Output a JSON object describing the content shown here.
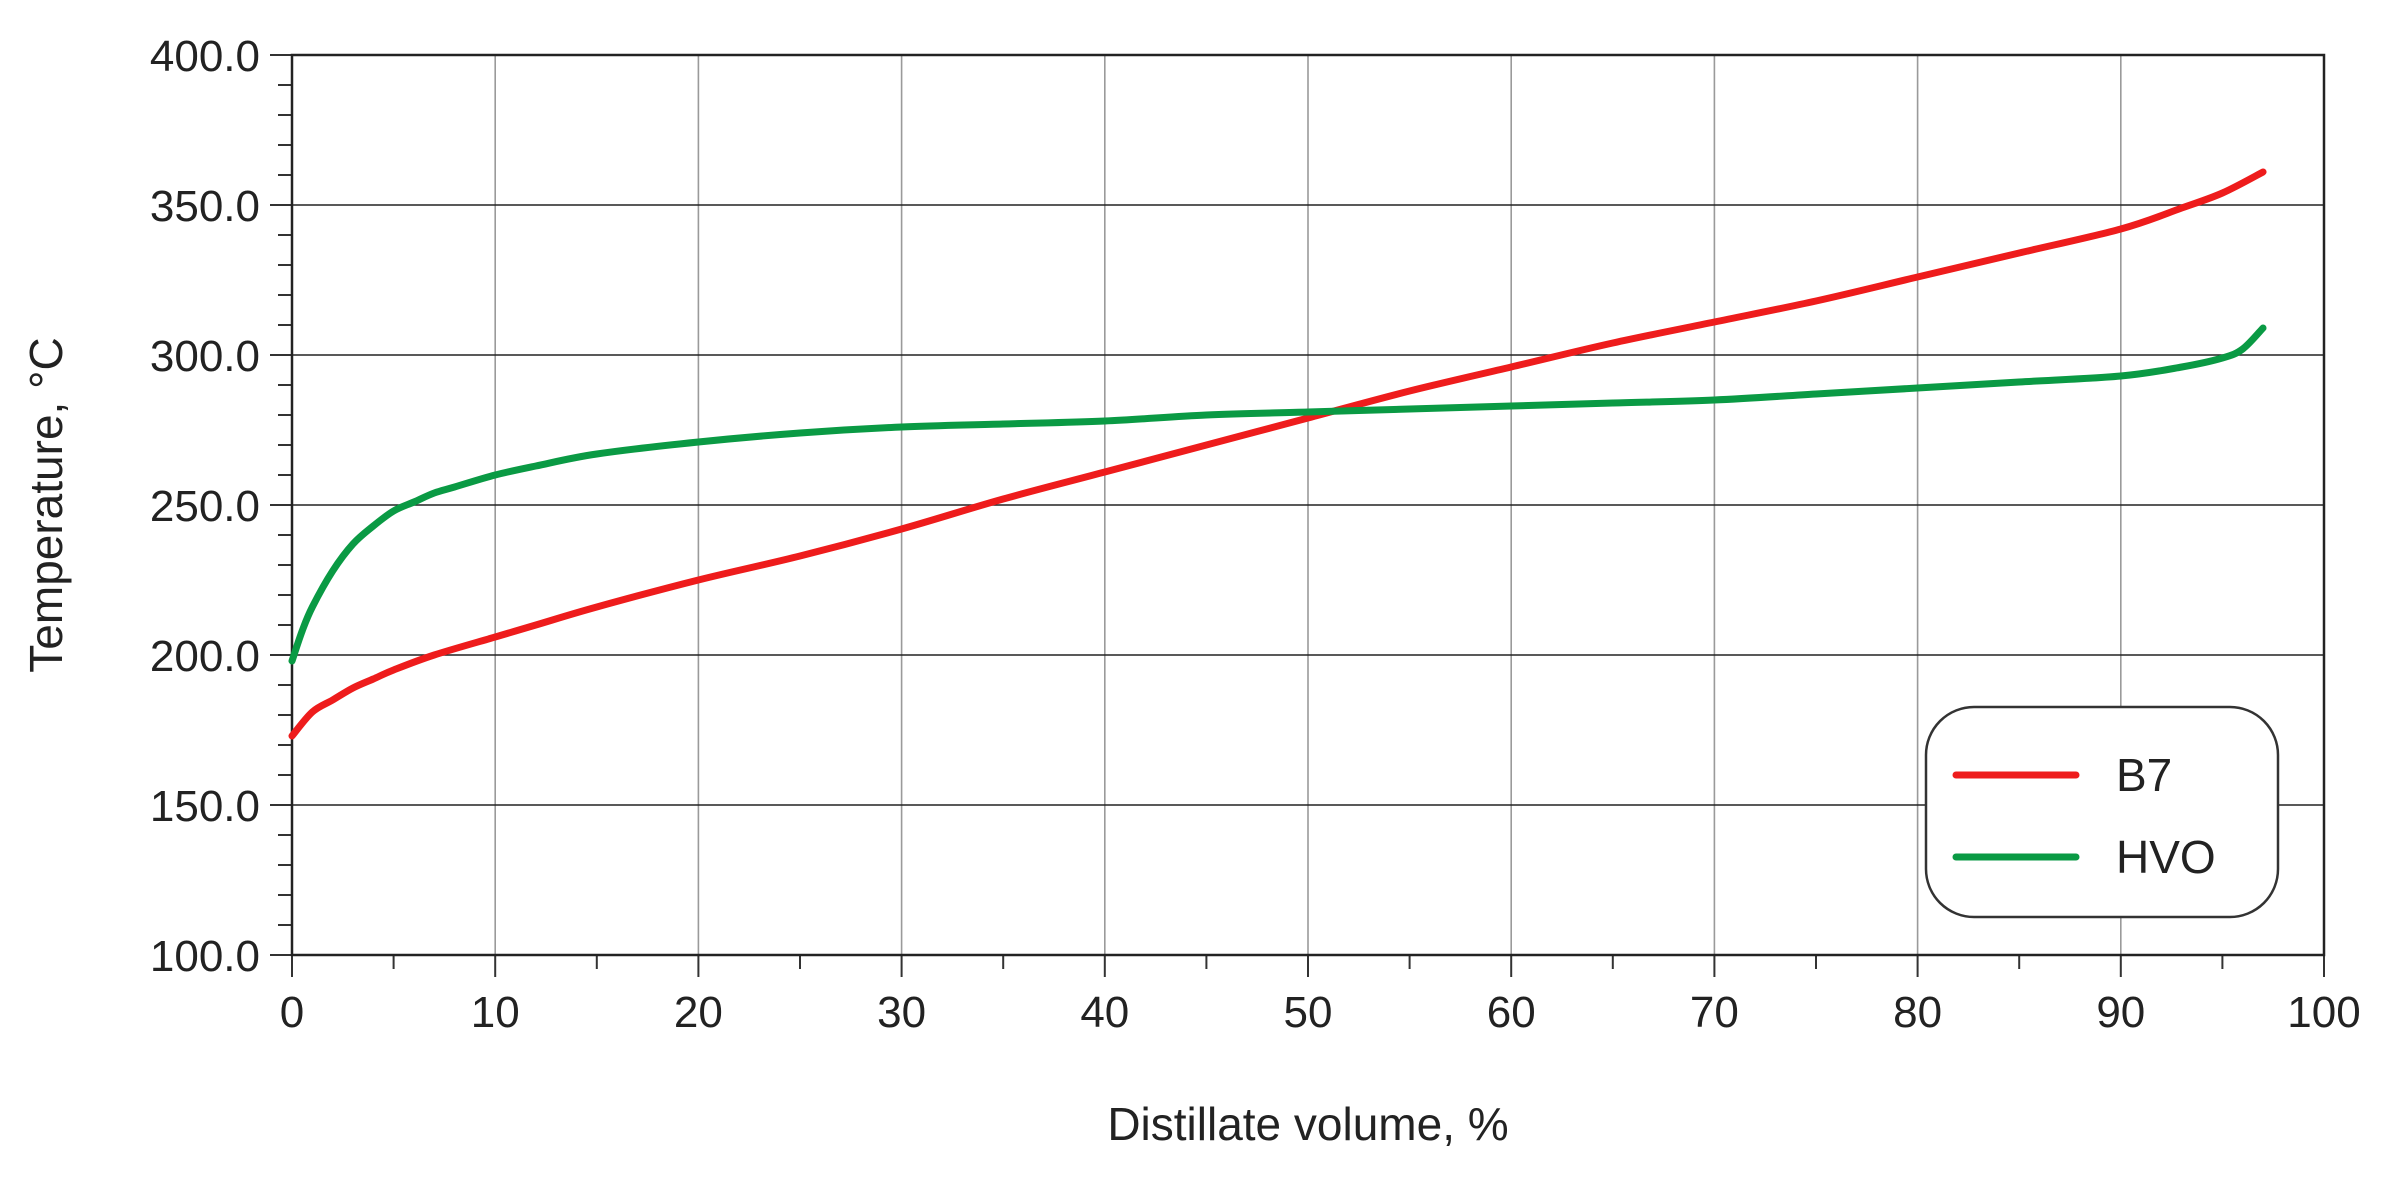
{
  "chart_data": {
    "type": "line",
    "xlabel": "Distillate volume, %",
    "ylabel": "Temperature, °C",
    "xlim": [
      0,
      100
    ],
    "ylim": [
      100,
      400
    ],
    "x_ticks": [
      0,
      10,
      20,
      30,
      40,
      50,
      60,
      70,
      80,
      90,
      100
    ],
    "y_ticks": [
      100,
      150,
      200,
      250,
      300,
      350,
      400
    ],
    "x_tick_labels": [
      "0",
      "10",
      "20",
      "30",
      "40",
      "50",
      "60",
      "70",
      "80",
      "90",
      "100"
    ],
    "y_tick_labels": [
      "100.0",
      "150.0",
      "200.0",
      "250.0",
      "300.0",
      "350.0",
      "400.0"
    ],
    "grid": true,
    "legend_position": "bottom-right",
    "series": [
      {
        "name": "B7",
        "color": "#ee1c1c",
        "x": [
          0,
          1,
          2,
          3,
          4,
          5,
          7,
          10,
          12,
          15,
          20,
          25,
          30,
          35,
          40,
          45,
          50,
          55,
          60,
          65,
          70,
          75,
          80,
          85,
          90,
          93,
          95,
          97
        ],
        "y": [
          173,
          181,
          185,
          189,
          192,
          195,
          200,
          206,
          210,
          216,
          225,
          233,
          242,
          252,
          261,
          270,
          279,
          288,
          296,
          304,
          311,
          318,
          326,
          334,
          342,
          349,
          354,
          361
        ]
      },
      {
        "name": "HVO",
        "color": "#0a9a44",
        "x": [
          0,
          0.5,
          1,
          2,
          3,
          4,
          5,
          6,
          7,
          8,
          10,
          12,
          15,
          20,
          25,
          30,
          35,
          40,
          45,
          50,
          55,
          60,
          65,
          70,
          75,
          80,
          85,
          90,
          93,
          95,
          96,
          97
        ],
        "y": [
          198,
          208,
          216,
          228,
          237,
          243,
          248,
          251,
          254,
          256,
          260,
          263,
          267,
          271,
          274,
          276,
          277,
          278,
          280,
          281,
          282,
          283,
          284,
          285,
          287,
          289,
          291,
          293,
          296,
          299,
          302,
          309
        ]
      }
    ]
  }
}
